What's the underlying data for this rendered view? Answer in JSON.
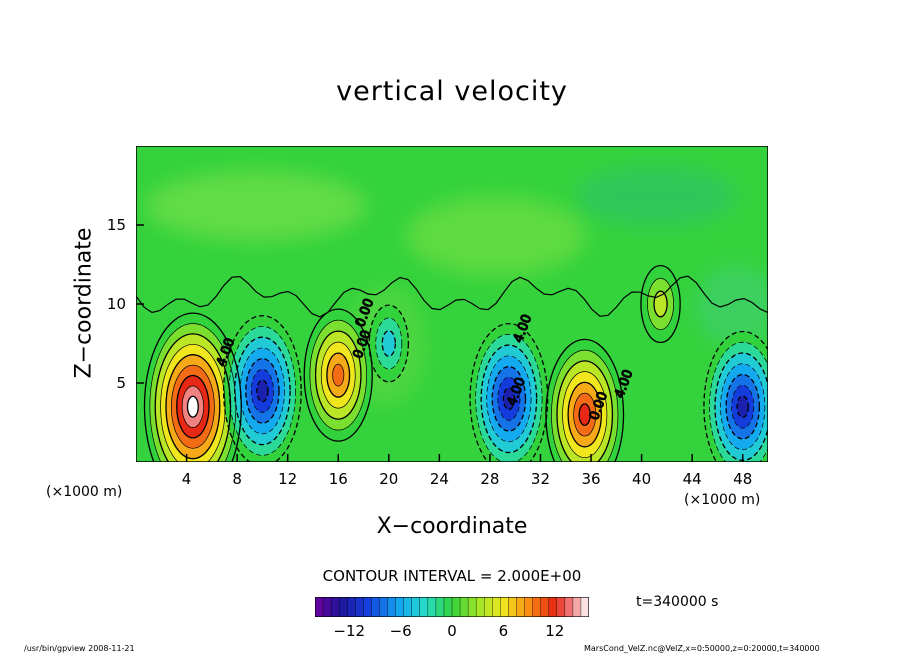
{
  "chart_data": {
    "type": "heatmap",
    "title": "vertical velocity",
    "xlabel": "X−coordinate",
    "ylabel": "Z−coordinate",
    "x_unit_left": "(×1000 m)",
    "x_unit_right": "(×1000 m)",
    "xlim": [
      0,
      50
    ],
    "ylim": [
      0,
      20
    ],
    "xticks": [
      "4",
      "8",
      "12",
      "16",
      "20",
      "24",
      "28",
      "32",
      "36",
      "40",
      "44",
      "48"
    ],
    "xtick_values": [
      4,
      8,
      12,
      16,
      20,
      24,
      28,
      32,
      36,
      40,
      44,
      48
    ],
    "yticks": [
      "5",
      "10",
      "15"
    ],
    "ytick_values": [
      5,
      10,
      15
    ],
    "contour_interval": "CONTOUR INTERVAL = 2.000E+00",
    "contour_labels": [
      "0.00",
      "4.00"
    ],
    "colorbar": {
      "ticks": [
        "−12",
        "−6",
        "0",
        "6",
        "12"
      ],
      "tick_values": [
        -12,
        -6,
        0,
        6,
        12
      ],
      "range": [
        -16,
        16
      ]
    },
    "cells": [
      {
        "x": 4.5,
        "z": 3.5,
        "value": 16
      },
      {
        "x": 10,
        "z": 4.5,
        "value": -12
      },
      {
        "x": 16,
        "z": 5.5,
        "value": 10
      },
      {
        "x": 20,
        "z": 7.5,
        "value": -4
      },
      {
        "x": 29.5,
        "z": 4,
        "value": -12
      },
      {
        "x": 35.5,
        "z": 3,
        "value": 12
      },
      {
        "x": 48,
        "z": 3.5,
        "value": -12
      },
      {
        "x": 41.5,
        "z": 10,
        "value": 4
      }
    ]
  },
  "time_label": "t=340000  s",
  "footer_left": "/usr/bin/gpview   2008-11-21",
  "footer_right": "MarsCond_VelZ.nc@VelZ,x=0:50000,z=0:20000,t=340000",
  "colors": {
    "background_field": "#2ecf3a",
    "positive_max": "#ffffff",
    "negative_max": "#20209a"
  }
}
